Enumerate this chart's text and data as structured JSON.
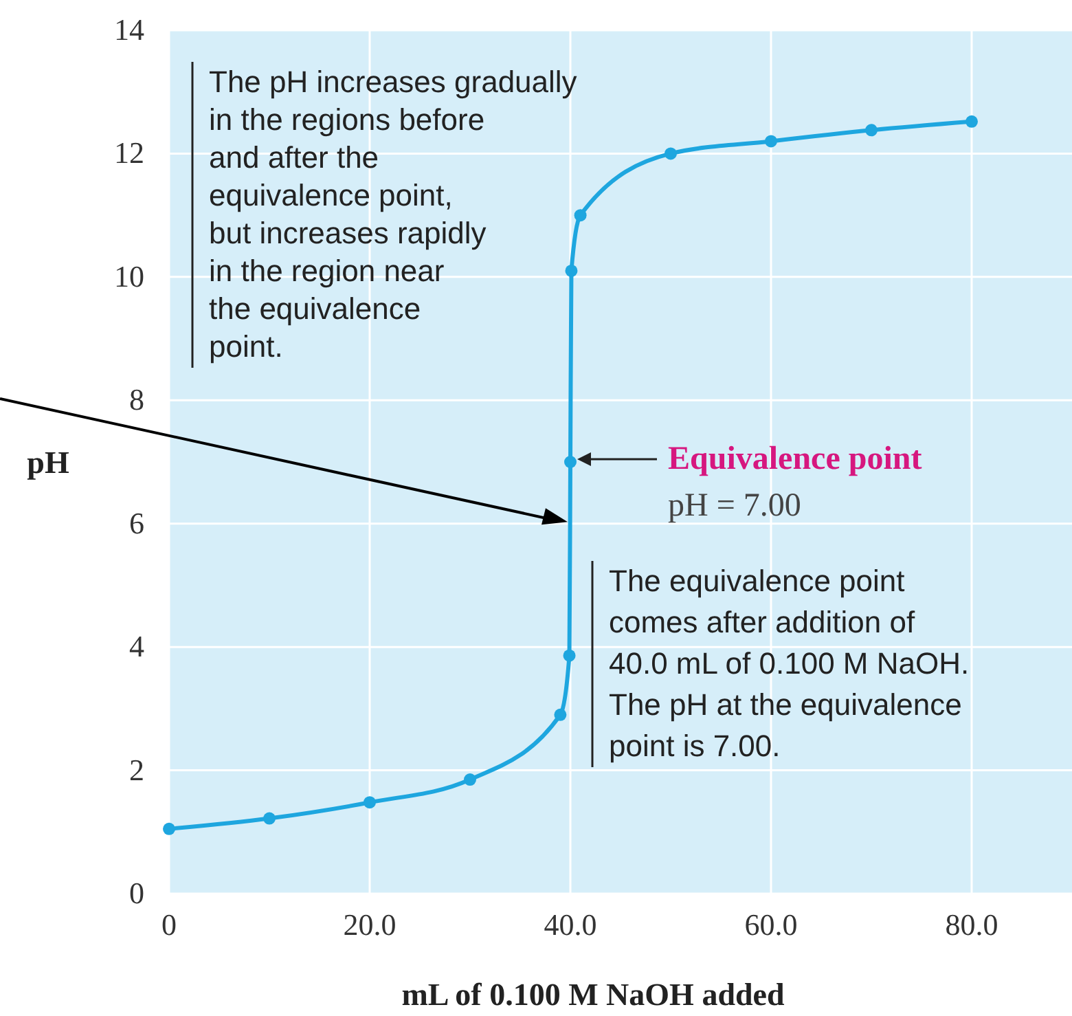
{
  "chart_data": {
    "type": "line",
    "xlabel": "mL of 0.100 M NaOH added",
    "ylabel": "pH",
    "series": [
      {
        "color": "#1ea6df",
        "x": [
          0,
          10,
          20,
          30,
          39,
          39.9,
          40,
          40.1,
          41,
          50,
          60,
          70,
          80
        ],
        "values": [
          1.05,
          1.22,
          1.48,
          1.85,
          2.9,
          3.86,
          7.0,
          10.1,
          11.0,
          12.0,
          12.2,
          12.38,
          12.52
        ]
      }
    ],
    "xlim": [
      0,
      90
    ],
    "ylim": [
      0,
      14
    ],
    "xticks": [
      0,
      {
        "value": 20,
        "label": "20.0"
      },
      {
        "value": 40,
        "label": "40.0"
      },
      {
        "value": 60,
        "label": "60.0"
      },
      {
        "value": 80,
        "label": "80.0"
      }
    ],
    "yticks": [
      0,
      2,
      4,
      6,
      8,
      10,
      12,
      14
    ],
    "grid": true,
    "marker": "circle",
    "line_style": "solid",
    "annotations": [
      "The pH increases gradually\nin the regions before\nand after the\nequivalence point,\nbut increases rapidly\nin the region near\nthe equivalence\npoint.",
      "Equivalence point\npH = 7.00",
      "The equivalence point\ncomes after addition of\n40.0 mL of 0.100 M NaOH.\nThe pH at the equivalence\npoint is 7.00."
    ]
  }
}
